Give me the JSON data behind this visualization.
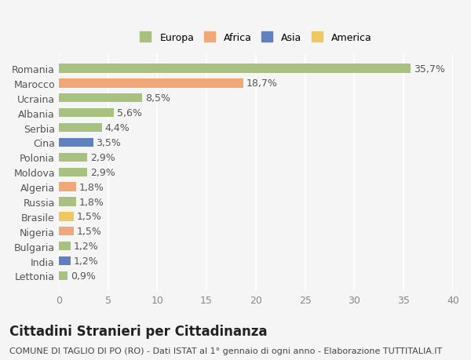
{
  "countries": [
    "Romania",
    "Marocco",
    "Ucraina",
    "Albania",
    "Serbia",
    "Cina",
    "Polonia",
    "Moldova",
    "Algeria",
    "Russia",
    "Brasile",
    "Nigeria",
    "Bulgaria",
    "India",
    "Lettonia"
  ],
  "values": [
    35.7,
    18.7,
    8.5,
    5.6,
    4.4,
    3.5,
    2.9,
    2.9,
    1.8,
    1.8,
    1.5,
    1.5,
    1.2,
    1.2,
    0.9
  ],
  "labels": [
    "35,7%",
    "18,7%",
    "8,5%",
    "5,6%",
    "4,4%",
    "3,5%",
    "2,9%",
    "2,9%",
    "1,8%",
    "1,8%",
    "1,5%",
    "1,5%",
    "1,2%",
    "1,2%",
    "0,9%"
  ],
  "continents": [
    "Europa",
    "Africa",
    "Europa",
    "Europa",
    "Europa",
    "Asia",
    "Europa",
    "Europa",
    "Africa",
    "Europa",
    "America",
    "Africa",
    "Europa",
    "Asia",
    "Europa"
  ],
  "continent_colors": {
    "Europa": "#a8c080",
    "Africa": "#f0a878",
    "Asia": "#6080c0",
    "America": "#f0c860"
  },
  "legend_order": [
    "Europa",
    "Africa",
    "Asia",
    "America"
  ],
  "background_color": "#f5f5f5",
  "xlim": [
    0,
    40
  ],
  "xticks": [
    0,
    5,
    10,
    15,
    20,
    25,
    30,
    35,
    40
  ],
  "title": "Cittadini Stranieri per Cittadinanza",
  "subtitle": "COMUNE DI TAGLIO DI PO (RO) - Dati ISTAT al 1° gennaio di ogni anno - Elaborazione TUTTITALIA.IT",
  "title_fontsize": 12,
  "subtitle_fontsize": 8,
  "bar_height": 0.6,
  "grid_color": "#ffffff",
  "tick_label_fontsize": 9,
  "value_label_fontsize": 9
}
